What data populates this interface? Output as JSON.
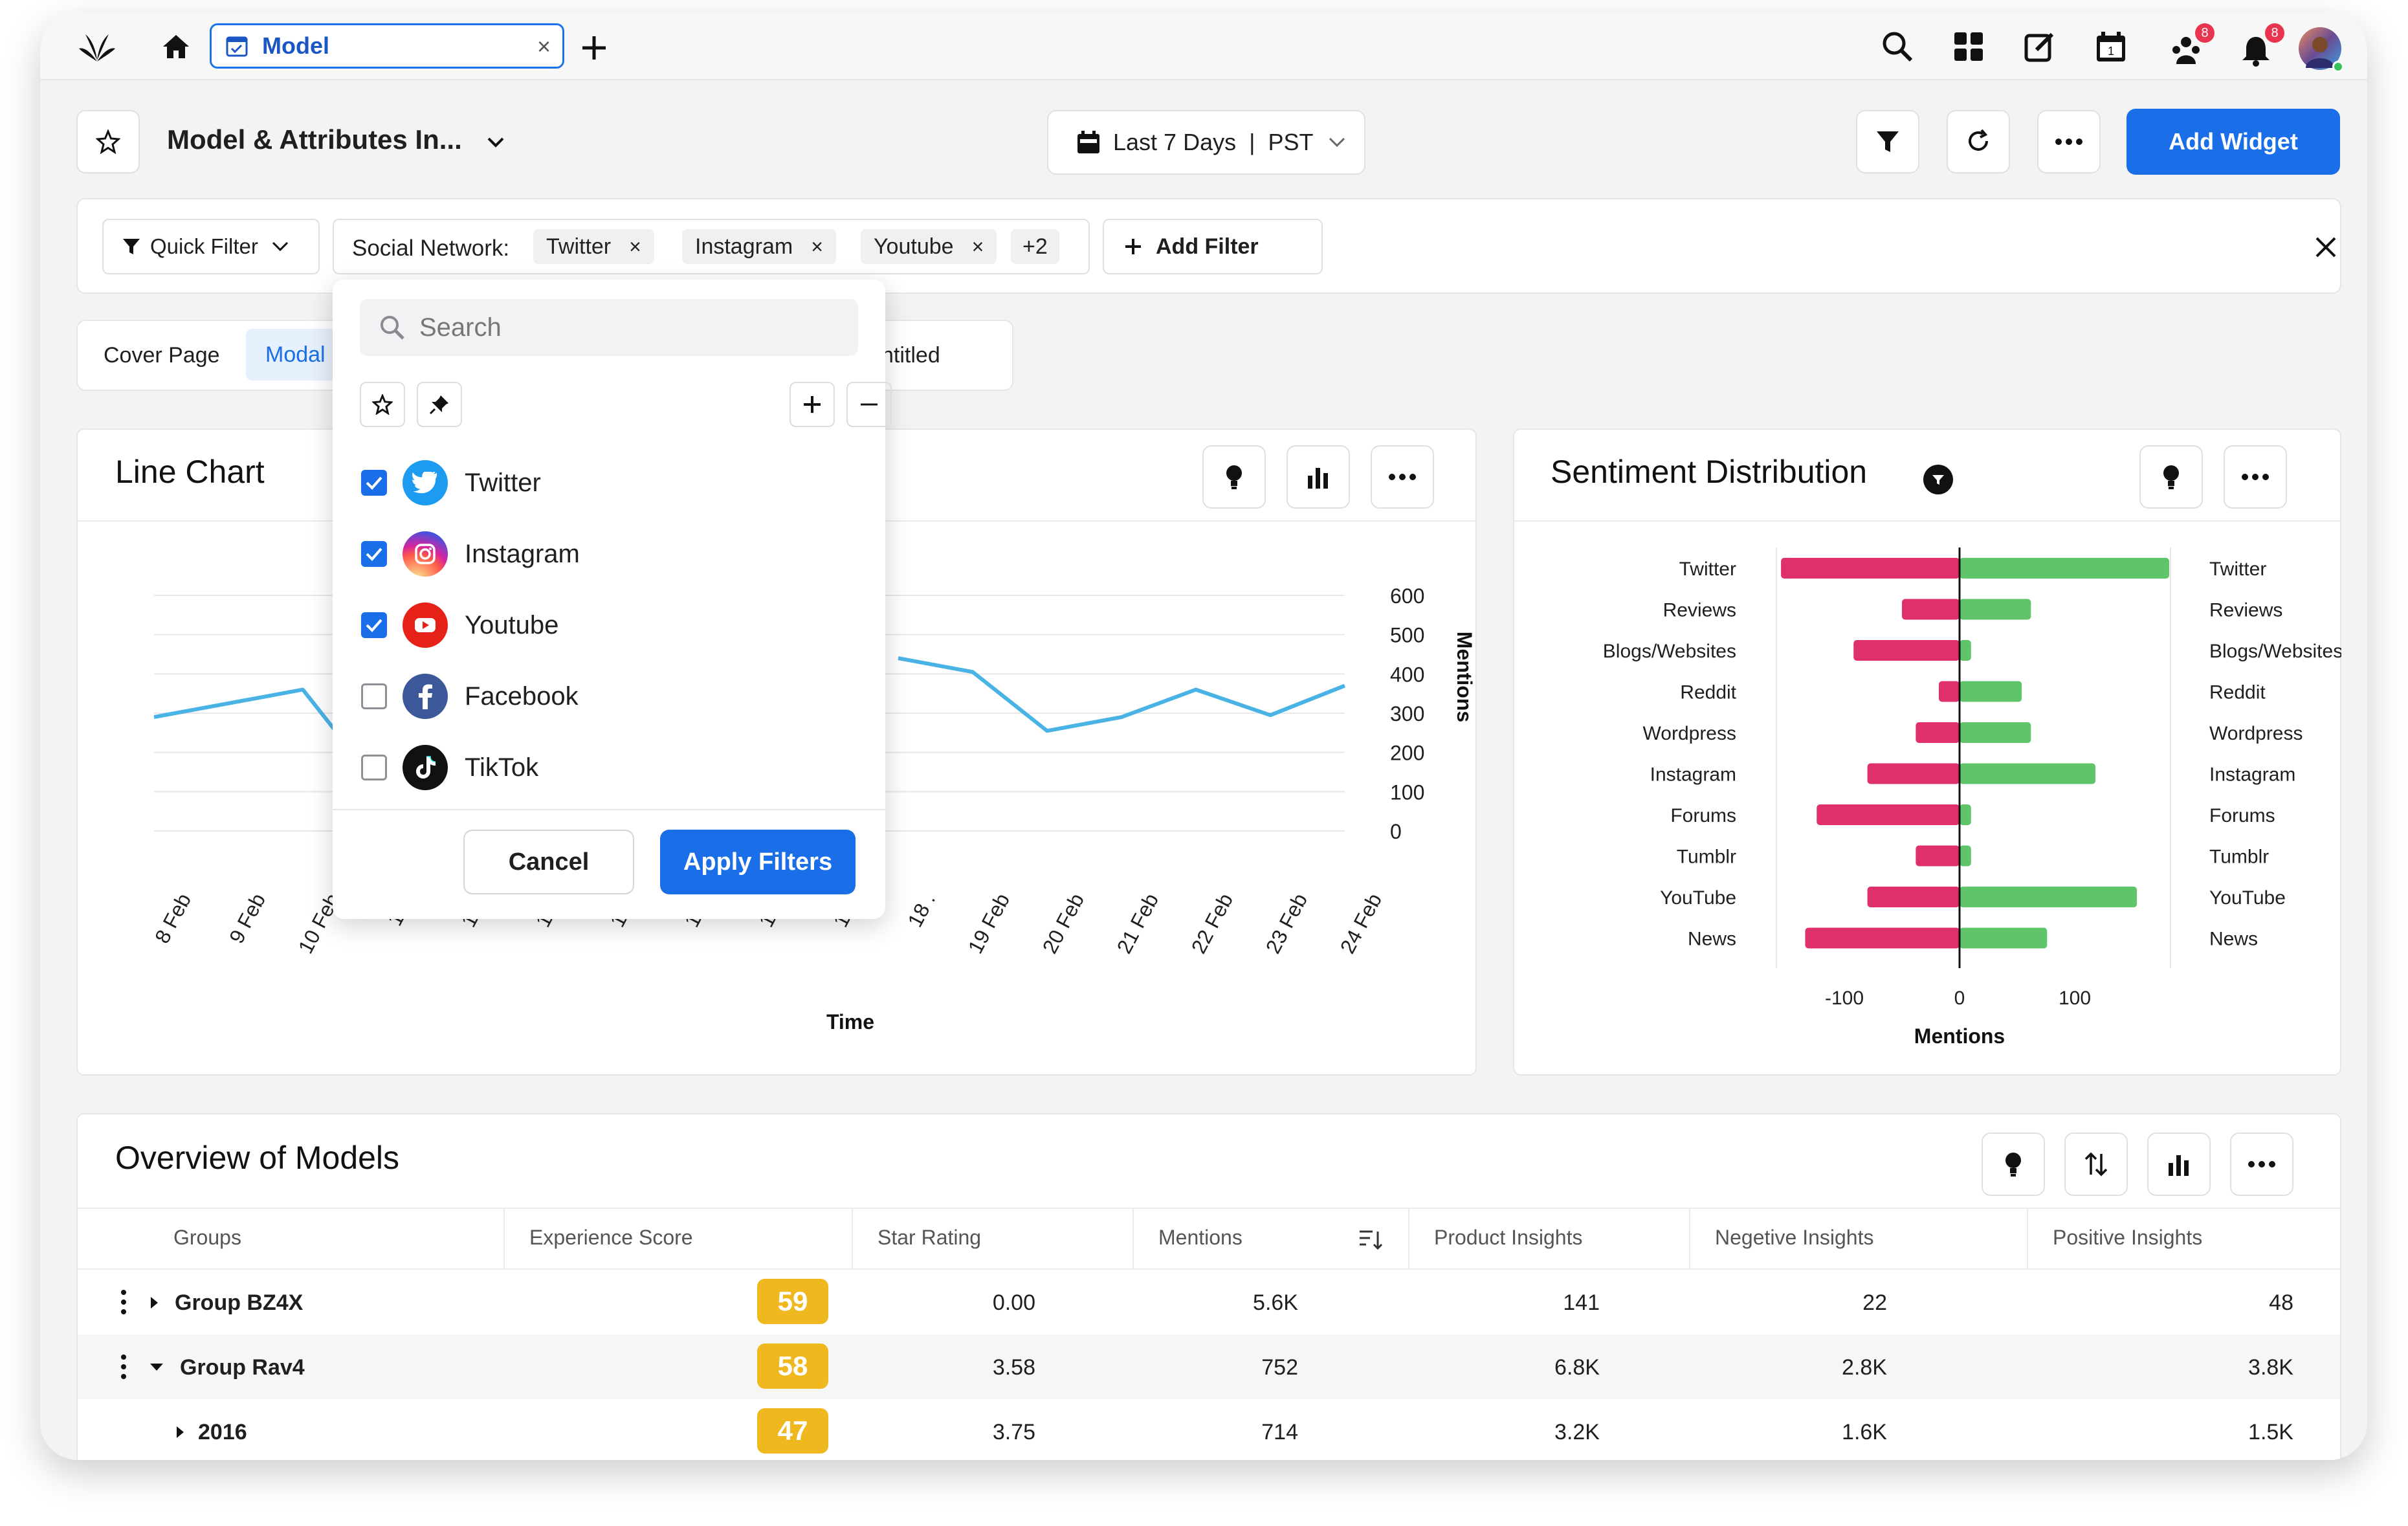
{
  "topbar": {
    "tab_label": "Model",
    "notifications_badge_1": "8",
    "notifications_badge_2": "8"
  },
  "dashboard": {
    "title": "Model & Attributes In...",
    "date_range": "Last 7 Days",
    "timezone": "PST",
    "add_widget": "Add Widget"
  },
  "filters": {
    "quick_filter": "Quick Filter",
    "social_network_label": "Social Network:",
    "chips": [
      "Twitter",
      "Instagram",
      "Youtube"
    ],
    "more_count": "+2",
    "add_filter": "Add Filter"
  },
  "page_tabs": {
    "cover_page": "Cover Page",
    "modal": "Modal",
    "untitled": "ntitled"
  },
  "dropdown": {
    "search_placeholder": "Search",
    "options": [
      {
        "label": "Twitter",
        "checked": true,
        "color": "#1d9bf0",
        "icon": "twitter-logo-icon"
      },
      {
        "label": "Instagram",
        "checked": true,
        "color": "#d6249f",
        "icon": "instagram-logo-icon"
      },
      {
        "label": "Youtube",
        "checked": true,
        "color": "#e62117",
        "icon": "youtube-logo-icon"
      },
      {
        "label": "Facebook",
        "checked": false,
        "color": "#3b5998",
        "icon": "facebook-logo-icon"
      },
      {
        "label": "TikTok",
        "checked": false,
        "color": "#111111",
        "icon": "tiktok-logo-icon"
      }
    ],
    "cancel": "Cancel",
    "apply": "Apply Filters"
  },
  "line_chart": {
    "title": "Line Chart",
    "chart_data": {
      "type": "line",
      "x": [
        "8 Feb",
        "9 Feb",
        "10 Feb",
        "11 Feb",
        "12 Feb",
        "13 Feb",
        "14 Feb",
        "15 Feb",
        "16 Feb",
        "17 Feb",
        "18 Feb",
        "19 Feb",
        "20 Feb",
        "21 Feb",
        "22 Feb",
        "23 Feb",
        "24 Feb"
      ],
      "x_tick_labels_visible": [
        "8 Feb",
        "9 Feb",
        "10 Feb",
        "11 .",
        "12 .",
        "13 .",
        "14 .",
        "15 .",
        "16 .",
        "17 .",
        "18 .",
        "19 Feb",
        "20 Feb",
        "21 Feb",
        "22 Feb",
        "23 Feb",
        "24 Feb"
      ],
      "series": [
        {
          "values": [
            290,
            325,
            360,
            120,
            null,
            null,
            null,
            null,
            null,
            null,
            440,
            405,
            255,
            290,
            360,
            295,
            370
          ]
        }
      ],
      "xlabel": "Time",
      "ylabel": "Mentions",
      "ylim": [
        0,
        600
      ],
      "yticks": [
        0,
        100,
        200,
        300,
        400,
        500,
        600
      ],
      "color": "#4ab3e6"
    }
  },
  "sentiment": {
    "title": "Sentiment Distribution",
    "chart_data": {
      "type": "bar",
      "orientation": "diverging-horizontal",
      "categories": [
        "Twitter",
        "Reviews",
        "Blogs/Websites",
        "Reddit",
        "Wordpress",
        "Instagram",
        "Forums",
        "Tumblr",
        "YouTube",
        "News"
      ],
      "series": [
        {
          "values": [
            -155,
            -50,
            -92,
            -18,
            -38,
            -80,
            -124,
            -38,
            -80,
            -134
          ],
          "color": "#e0306b"
        },
        {
          "values": [
            182,
            62,
            10,
            54,
            62,
            118,
            10,
            10,
            154,
            76
          ],
          "color": "#5fc46a"
        }
      ],
      "xlabel": "Mentions",
      "xticks": [
        -100,
        0,
        100
      ]
    }
  },
  "overview": {
    "title": "Overview of Models",
    "columns": [
      "Groups",
      "Experience Score",
      "Star Rating",
      "Mentions",
      "Product Insights",
      "Negetive Insights",
      "Positive Insights"
    ],
    "rows": [
      {
        "group": "Group BZ4X",
        "score": "59",
        "star": "0.00",
        "mentions": "5.6K",
        "product": "141",
        "negative": "22",
        "positive": "48"
      },
      {
        "group": "Group Rav4",
        "score": "58",
        "star": "3.58",
        "mentions": "752",
        "product": "6.8K",
        "negative": "2.8K",
        "positive": "3.8K"
      },
      {
        "group": "2016",
        "score": "47",
        "star": "3.75",
        "mentions": "714",
        "product": "3.2K",
        "negative": "1.6K",
        "positive": "1.5K"
      }
    ]
  }
}
